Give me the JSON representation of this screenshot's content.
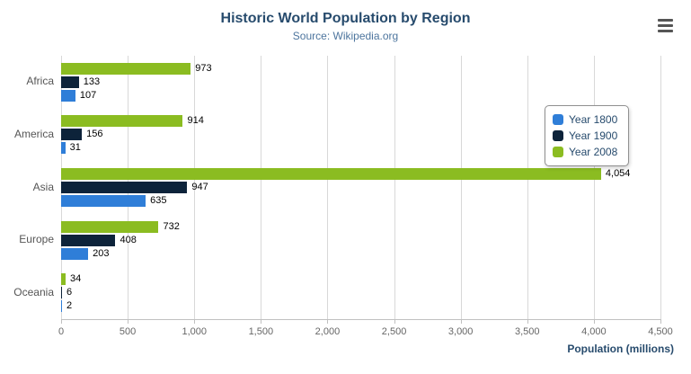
{
  "header": {
    "menu_icon": "hamburger-menu-icon"
  },
  "chart_data": {
    "type": "bar",
    "orientation": "horizontal",
    "title": "Historic World Population by Region",
    "subtitle": "Source: Wikipedia.org",
    "categories": [
      "Africa",
      "America",
      "Asia",
      "Europe",
      "Oceania"
    ],
    "series": [
      {
        "name": "Year 1800",
        "color": "#2f7ed8",
        "values": [
          107,
          31,
          635,
          203,
          2
        ]
      },
      {
        "name": "Year 1900",
        "color": "#0d233a",
        "values": [
          133,
          156,
          947,
          408,
          6
        ]
      },
      {
        "name": "Year 2008",
        "color": "#8bbc21",
        "values": [
          973,
          914,
          4054,
          732,
          34
        ]
      }
    ],
    "xlabel": "Population (millions)",
    "xlim": [
      0,
      4500
    ],
    "xticks": [
      0,
      500,
      1000,
      1500,
      2000,
      2500,
      3000,
      3500,
      4000,
      4500
    ],
    "grid": true,
    "legend_position": "middle-right",
    "bar_group_order_top_to_bottom": [
      "Year 2008",
      "Year 1900",
      "Year 1800"
    ]
  }
}
